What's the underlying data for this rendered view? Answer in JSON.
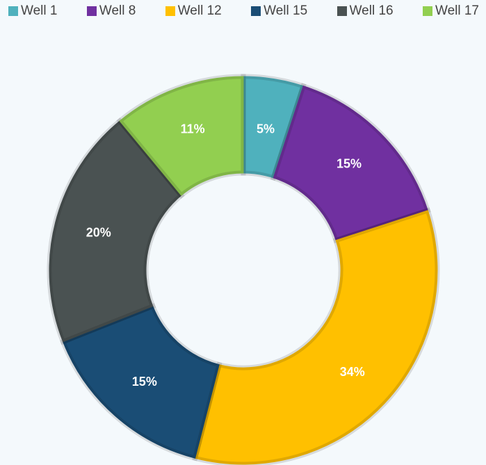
{
  "chart_data": {
    "type": "donut",
    "categories": [
      "Well 1",
      "Well 8",
      "Well 12",
      "Well 15",
      "Well 16",
      "Well 17"
    ],
    "values": [
      5,
      15,
      34,
      15,
      20,
      11
    ],
    "value_labels": [
      "5%",
      "15%",
      "34%",
      "15%",
      "20%",
      "11%"
    ],
    "colors": [
      "#4fb1bd",
      "#7030a0",
      "#ffc000",
      "#1a4d75",
      "#4a5252",
      "#92cf50"
    ],
    "legend": "top"
  }
}
